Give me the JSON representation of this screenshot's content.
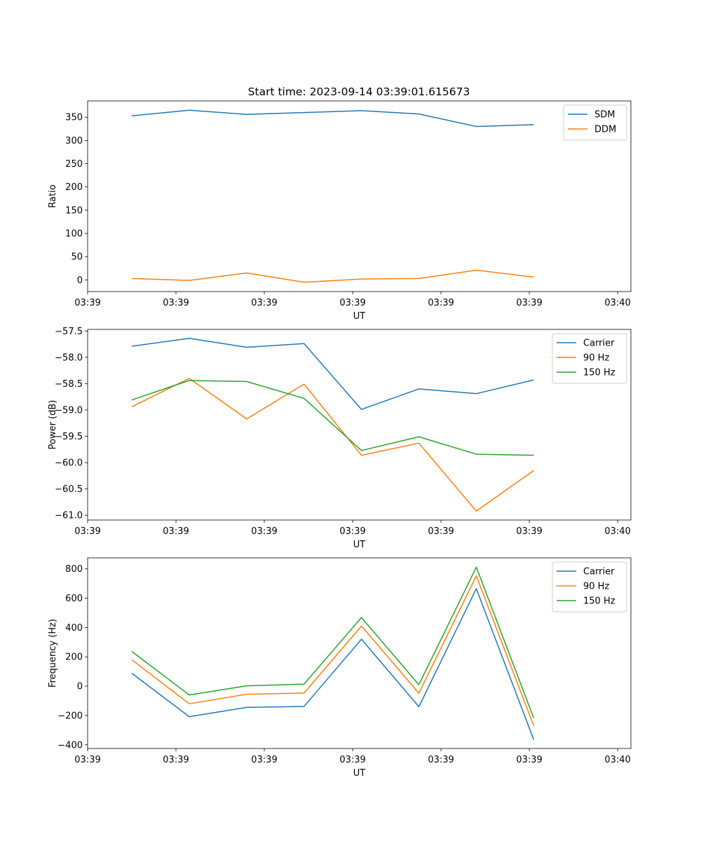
{
  "title": "Start time: 2023-09-14 03:39:01.615673",
  "chart_data": [
    {
      "type": "line",
      "title": "Start time: 2023-09-14 03:39:01.615673",
      "xlabel": "UT",
      "ylabel": "Ratio",
      "xticks": [
        "03:39",
        "03:39",
        "03:39",
        "03:39",
        "03:39",
        "03:39",
        "03:40"
      ],
      "xlim": [
        0,
        6.15
      ],
      "ylim": [
        -25,
        385
      ],
      "yticks": [
        0,
        50,
        100,
        150,
        200,
        250,
        300,
        350
      ],
      "legend_position": "top-right",
      "x": [
        0.5,
        1.15,
        1.8,
        2.45,
        3.1,
        3.75,
        4.4,
        5.05
      ],
      "series": [
        {
          "name": "SDM",
          "color": "#1f77b4",
          "values": [
            353,
            365,
            356,
            360,
            364,
            357,
            330,
            334
          ]
        },
        {
          "name": "DDM",
          "color": "#ff7f0e",
          "values": [
            3,
            -1,
            15,
            -5,
            2,
            3,
            21,
            6
          ]
        }
      ]
    },
    {
      "type": "line",
      "title": "",
      "xlabel": "UT",
      "ylabel": "Power (dB)",
      "xticks": [
        "03:39",
        "03:39",
        "03:39",
        "03:39",
        "03:39",
        "03:39",
        "03:40"
      ],
      "xlim": [
        0,
        6.15
      ],
      "ylim": [
        -61.09,
        -57.47
      ],
      "yticks": [
        -61.0,
        -60.5,
        -60.0,
        -59.5,
        -59.0,
        -58.5,
        -58.0,
        -57.5
      ],
      "yticklabels": [
        "−61.0",
        "−60.5",
        "−60.0",
        "−59.5",
        "−59.0",
        "−58.5",
        "−58.0",
        "−57.5"
      ],
      "legend_position": "top-right",
      "x": [
        0.5,
        1.15,
        1.8,
        2.45,
        3.1,
        3.75,
        4.4,
        5.05
      ],
      "series": [
        {
          "name": "Carrier",
          "color": "#1f77b4",
          "values": [
            -57.79,
            -57.64,
            -57.81,
            -57.74,
            -58.99,
            -58.6,
            -58.69,
            -58.43
          ]
        },
        {
          "name": "90 Hz",
          "color": "#ff7f0e",
          "values": [
            -58.94,
            -58.4,
            -59.17,
            -58.51,
            -59.86,
            -59.63,
            -60.92,
            -60.15
          ]
        },
        {
          "name": "150 Hz",
          "color": "#2ca02c",
          "values": [
            -58.81,
            -58.44,
            -58.46,
            -58.78,
            -59.77,
            -59.51,
            -59.84,
            -59.86
          ]
        }
      ]
    },
    {
      "type": "line",
      "title": "",
      "xlabel": "UT",
      "ylabel": "Frequency (Hz)",
      "xticks": [
        "03:39",
        "03:39",
        "03:39",
        "03:39",
        "03:39",
        "03:39",
        "03:40"
      ],
      "xlim": [
        0,
        6.15
      ],
      "ylim": [
        -425,
        875
      ],
      "yticks": [
        -400,
        -200,
        0,
        200,
        400,
        600,
        800
      ],
      "yticklabels": [
        "−400",
        "−200",
        "0",
        "200",
        "400",
        "600",
        "800"
      ],
      "legend_position": "top-right",
      "x": [
        0.5,
        1.15,
        1.8,
        2.45,
        3.1,
        3.75,
        4.4,
        5.05
      ],
      "series": [
        {
          "name": "Carrier",
          "color": "#1f77b4",
          "values": [
            88,
            -208,
            -145,
            -138,
            320,
            -140,
            665,
            -365
          ]
        },
        {
          "name": "90 Hz",
          "color": "#ff7f0e",
          "values": [
            180,
            -120,
            -55,
            -47,
            410,
            -48,
            752,
            -270
          ]
        },
        {
          "name": "150 Hz",
          "color": "#2ca02c",
          "values": [
            237,
            -60,
            2,
            14,
            468,
            10,
            812,
            -218
          ]
        }
      ]
    }
  ]
}
